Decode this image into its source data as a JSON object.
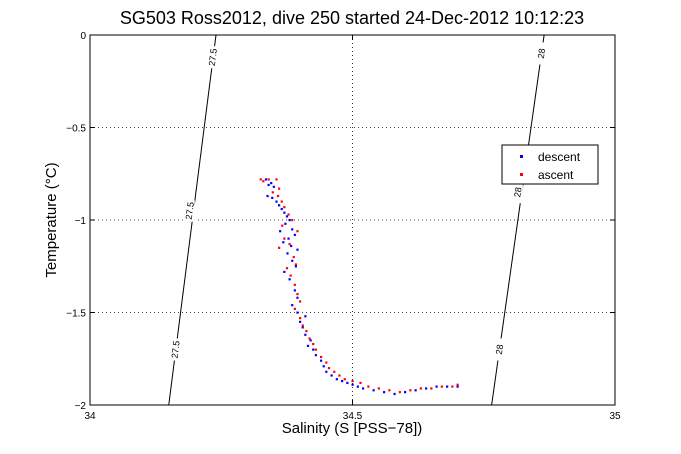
{
  "chart_data": {
    "type": "scatter",
    "title": "SG503 Ross2012, dive 250 started 24-Dec-2012 10:12:23",
    "xlabel": "Salinity (S [PSS−78])",
    "ylabel": "Temperature (°C)",
    "xlim": [
      34,
      35
    ],
    "ylim": [
      -2,
      0
    ],
    "x_ticks": [
      34,
      34.5,
      35
    ],
    "x_tick_labels": [
      "34",
      "34.5",
      "35"
    ],
    "y_ticks": [
      -2,
      -1.5,
      -1,
      -0.5,
      0
    ],
    "y_tick_labels": [
      "−2",
      "−1.5",
      "−1",
      "−0.5",
      "0"
    ],
    "grid": true,
    "legend_position": "right",
    "contours": [
      {
        "level": "27.5",
        "line": [
          [
            34.15,
            -2.0
          ],
          [
            34.24,
            0.0
          ]
        ],
        "labels": [
          [
            34.163,
            -1.7
          ],
          [
            34.19,
            -0.95
          ],
          [
            34.234,
            -0.12
          ]
        ]
      },
      {
        "level": "28",
        "line": [
          [
            34.765,
            -2.0
          ],
          [
            34.865,
            0.0
          ]
        ],
        "labels": [
          [
            34.78,
            -1.7
          ],
          [
            34.815,
            -0.85
          ],
          [
            34.86,
            -0.1
          ]
        ]
      }
    ],
    "series": [
      {
        "name": "descent",
        "color": "#0000ff",
        "points": [
          [
            34.335,
            -0.78
          ],
          [
            34.345,
            -0.8
          ],
          [
            34.34,
            -0.81
          ],
          [
            34.35,
            -0.82
          ],
          [
            34.338,
            -0.87
          ],
          [
            34.347,
            -0.88
          ],
          [
            34.355,
            -0.9
          ],
          [
            34.36,
            -0.92
          ],
          [
            34.365,
            -0.94
          ],
          [
            34.37,
            -0.96
          ],
          [
            34.375,
            -0.98
          ],
          [
            34.38,
            -1.0
          ],
          [
            34.372,
            -1.02
          ],
          [
            34.385,
            -1.05
          ],
          [
            34.362,
            -1.06
          ],
          [
            34.39,
            -1.08
          ],
          [
            34.378,
            -1.1
          ],
          [
            34.368,
            -1.12
          ],
          [
            34.383,
            -1.14
          ],
          [
            34.395,
            -1.16
          ],
          [
            34.376,
            -1.18
          ],
          [
            34.385,
            -1.22
          ],
          [
            34.392,
            -1.25
          ],
          [
            34.37,
            -1.28
          ],
          [
            34.38,
            -1.32
          ],
          [
            34.39,
            -1.38
          ],
          [
            34.395,
            -1.42
          ],
          [
            34.385,
            -1.46
          ],
          [
            34.395,
            -1.5
          ],
          [
            34.41,
            -1.52
          ],
          [
            34.4,
            -1.55
          ],
          [
            34.405,
            -1.58
          ],
          [
            34.41,
            -1.62
          ],
          [
            34.42,
            -1.65
          ],
          [
            34.415,
            -1.68
          ],
          [
            34.425,
            -1.7
          ],
          [
            34.43,
            -1.73
          ],
          [
            34.44,
            -1.76
          ],
          [
            34.445,
            -1.79
          ],
          [
            34.45,
            -1.82
          ],
          [
            34.46,
            -1.84
          ],
          [
            34.47,
            -1.86
          ],
          [
            34.48,
            -1.87
          ],
          [
            34.49,
            -1.88
          ],
          [
            34.5,
            -1.89
          ],
          [
            34.51,
            -1.9
          ],
          [
            34.52,
            -1.91
          ],
          [
            34.54,
            -1.92
          ],
          [
            34.56,
            -1.93
          ],
          [
            34.58,
            -1.94
          ],
          [
            34.6,
            -1.93
          ],
          [
            34.62,
            -1.92
          ],
          [
            34.64,
            -1.91
          ],
          [
            34.66,
            -1.9
          ],
          [
            34.68,
            -1.9
          ],
          [
            34.7,
            -1.9
          ]
        ]
      },
      {
        "name": "ascent",
        "color": "#ff0000",
        "points": [
          [
            34.325,
            -0.78
          ],
          [
            34.33,
            -0.79
          ],
          [
            34.34,
            -0.78
          ],
          [
            34.355,
            -0.78
          ],
          [
            34.36,
            -0.83
          ],
          [
            34.348,
            -0.85
          ],
          [
            34.358,
            -0.87
          ],
          [
            34.365,
            -0.9
          ],
          [
            34.37,
            -0.93
          ],
          [
            34.378,
            -0.97
          ],
          [
            34.385,
            -1.0
          ],
          [
            34.366,
            -1.03
          ],
          [
            34.395,
            -1.06
          ],
          [
            34.37,
            -1.1
          ],
          [
            34.38,
            -1.13
          ],
          [
            34.36,
            -1.15
          ],
          [
            34.388,
            -1.2
          ],
          [
            34.392,
            -1.24
          ],
          [
            34.375,
            -1.26
          ],
          [
            34.382,
            -1.3
          ],
          [
            34.39,
            -1.35
          ],
          [
            34.395,
            -1.4
          ],
          [
            34.4,
            -1.44
          ],
          [
            34.39,
            -1.48
          ],
          [
            34.4,
            -1.53
          ],
          [
            34.405,
            -1.57
          ],
          [
            34.412,
            -1.6
          ],
          [
            34.418,
            -1.64
          ],
          [
            34.425,
            -1.67
          ],
          [
            34.43,
            -1.7
          ],
          [
            34.44,
            -1.74
          ],
          [
            34.45,
            -1.77
          ],
          [
            34.455,
            -1.8
          ],
          [
            34.465,
            -1.82
          ],
          [
            34.475,
            -1.84
          ],
          [
            34.485,
            -1.86
          ],
          [
            34.5,
            -1.87
          ],
          [
            34.515,
            -1.88
          ],
          [
            34.53,
            -1.9
          ],
          [
            34.55,
            -1.91
          ],
          [
            34.57,
            -1.92
          ],
          [
            34.59,
            -1.93
          ],
          [
            34.61,
            -1.92
          ],
          [
            34.63,
            -1.91
          ],
          [
            34.65,
            -1.91
          ],
          [
            34.67,
            -1.9
          ],
          [
            34.69,
            -1.9
          ],
          [
            34.7,
            -1.89
          ]
        ]
      }
    ]
  }
}
